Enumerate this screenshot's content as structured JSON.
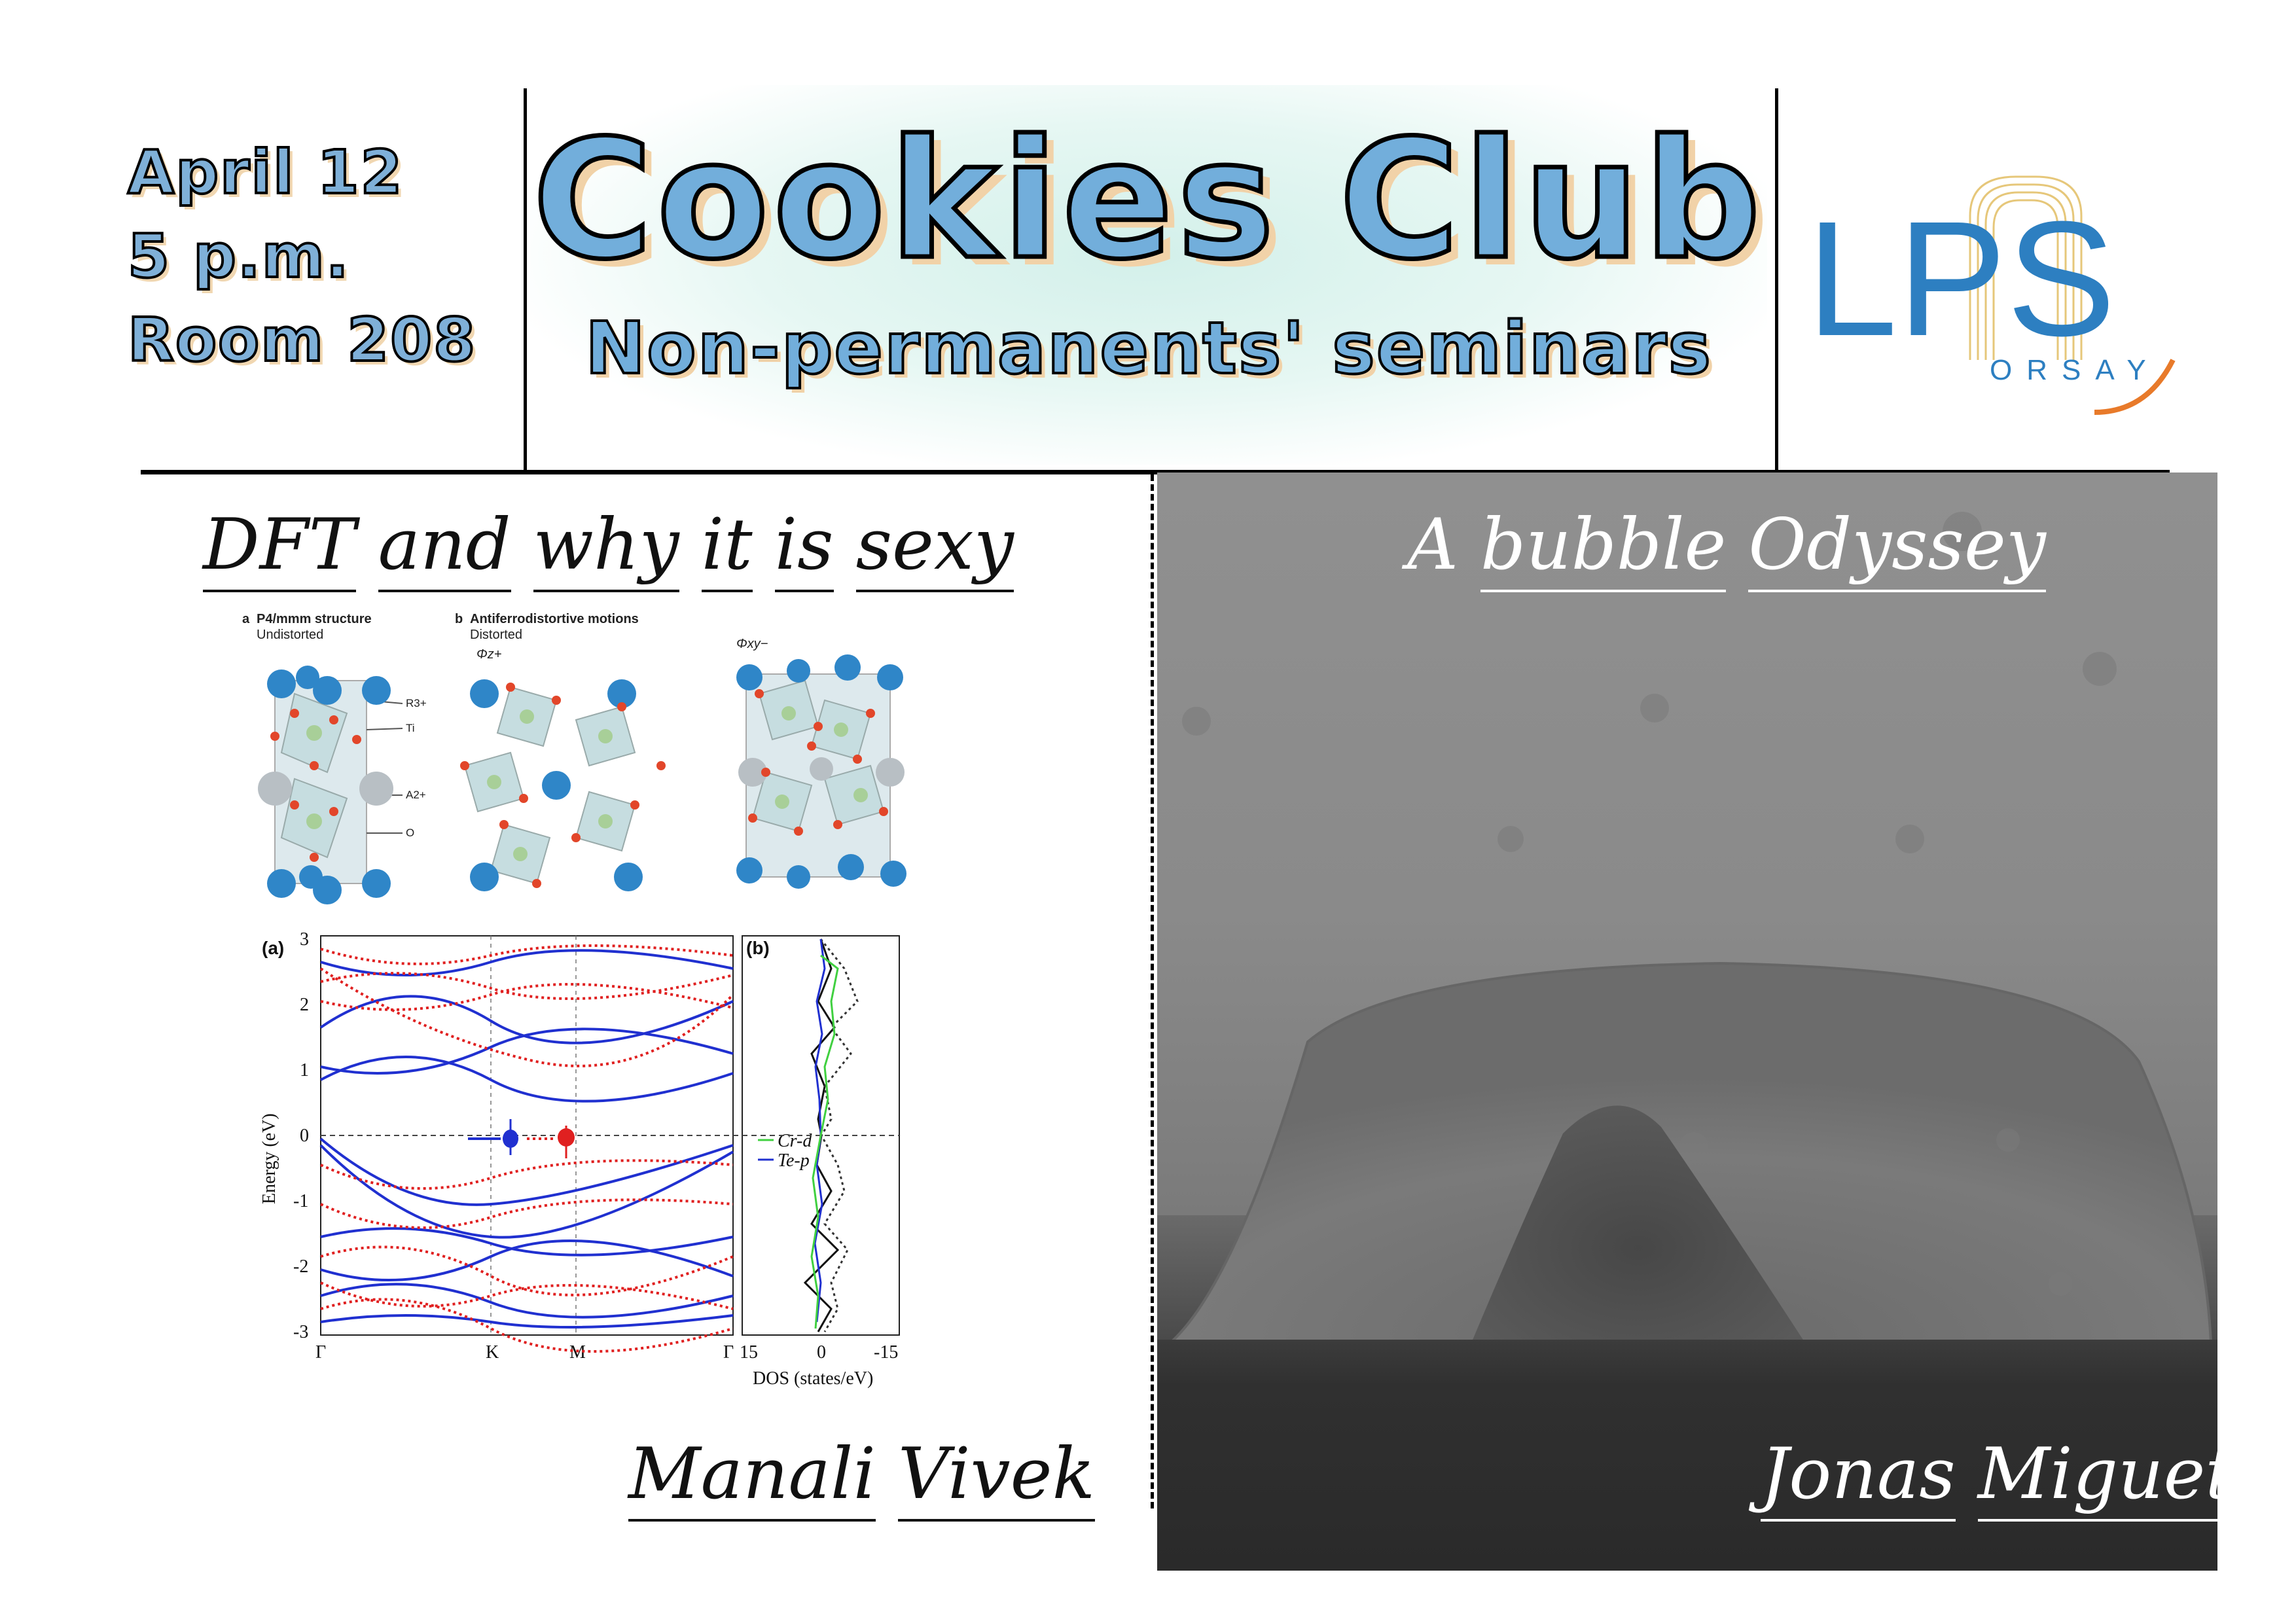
{
  "header": {
    "date_lines": [
      "April 12",
      "5 p.m.",
      "Room 208"
    ],
    "title": "Cookies Club",
    "subtitle": "Non-permanents' seminars",
    "logo": {
      "letters": "LPS",
      "place": "ORSAY",
      "colors": {
        "blue": "#2d7fc1",
        "accent": "#e87a2a",
        "gold": "#e6c77a"
      }
    }
  },
  "left_talk": {
    "title_words": [
      "DFT",
      "and",
      "why",
      "it",
      "is",
      "sexy"
    ],
    "speaker_words": [
      "Manali",
      "Vivek"
    ],
    "crystal_figure": {
      "panel_a": "a",
      "panel_a_title": "P4/mmm structure",
      "panel_a_sub": "Undistorted",
      "panel_b": "b",
      "panel_b_title": "Antiferrodistortive motions",
      "panel_b_sub": "Distorted",
      "phi_z": "Φz+",
      "phi_xy": "Φxy−",
      "labels": [
        "R3+",
        "Ti",
        "A2+",
        "O"
      ]
    },
    "band_figure": {
      "panel_a": "(a)",
      "panel_b": "(b)",
      "ylabel": "Energy (eV)",
      "yticks": [
        "3",
        "2",
        "1",
        "0",
        "-1",
        "-2",
        "-3"
      ],
      "xticks": [
        "Γ",
        "K",
        "M",
        "Γ"
      ],
      "dos_xticks": [
        "15",
        "0",
        "-15"
      ],
      "dos_xlabel": "DOS (states/eV)",
      "dos_legend": [
        "Cr-d",
        "Te-p"
      ],
      "colors": {
        "spin_up": "#2030d0",
        "spin_down": "#e02020",
        "cr": "#40d040"
      }
    }
  },
  "right_talk": {
    "title_words": [
      "A",
      "bubble",
      "Odyssey"
    ],
    "speaker_words": [
      "Jonas",
      "Miguet"
    ]
  }
}
